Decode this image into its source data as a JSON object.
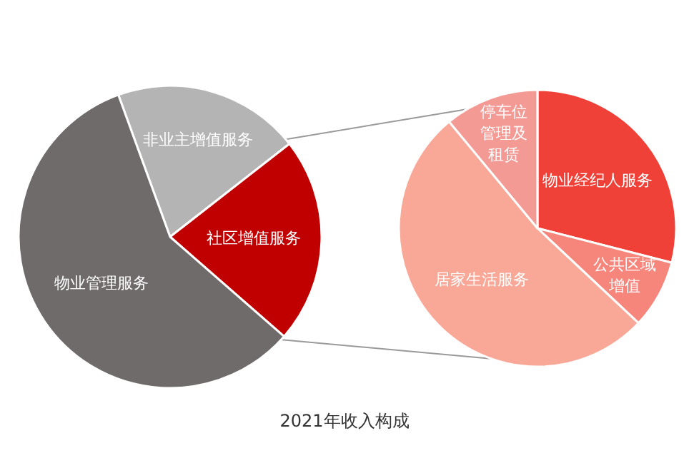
{
  "chart_data": [
    {
      "type": "pie",
      "title": "2021年收入构成",
      "categories": [
        "非业主增值服务",
        "社区增值服务",
        "物业管理服务"
      ],
      "values": [
        20,
        22,
        58
      ],
      "colors": [
        "#b4b4b4",
        "#c00000",
        "#6f6b6b"
      ]
    },
    {
      "type": "pie",
      "categories": [
        "物业经纪人服务",
        "公共区域增值",
        "居家生活服务",
        "停车位管理及租赁"
      ],
      "values": [
        29,
        8,
        52,
        11
      ],
      "colors": [
        "#ef4138",
        "#f6867c",
        "#f9a796",
        "#f49a94"
      ]
    }
  ]
}
